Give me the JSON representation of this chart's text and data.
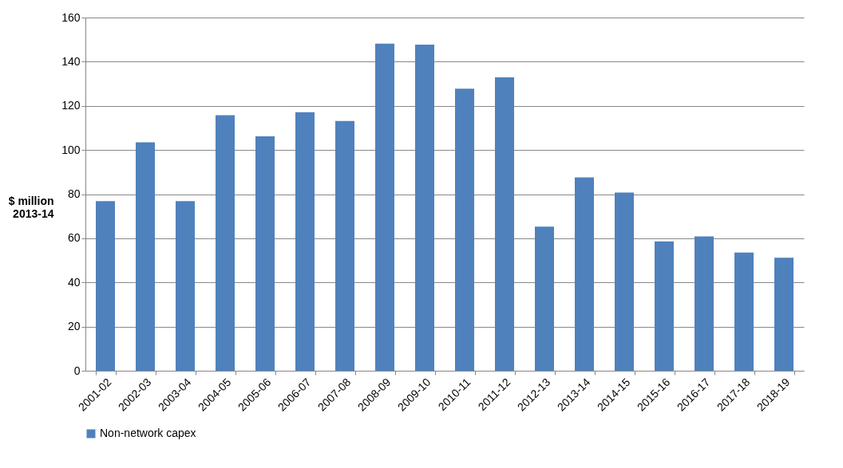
{
  "chart_data": {
    "type": "bar",
    "ylabel": "$ million\n2013-14",
    "categories": [
      "2001-02",
      "2002-03",
      "2003-04",
      "2004-05",
      "2005-06",
      "2006-07",
      "2007-08",
      "2008-09",
      "2009-10",
      "2010-11",
      "2011-12",
      "2012-13",
      "2013-14",
      "2014-15",
      "2015-16",
      "2016-17",
      "2017-18",
      "2018-19"
    ],
    "series": [
      {
        "name": "Non-network capex",
        "color": "#4f81bd",
        "values": [
          76.8,
          103.5,
          76.8,
          115.8,
          106.2,
          117.1,
          113.1,
          148.2,
          147.7,
          127.8,
          132.9,
          65.3,
          87.6,
          80.7,
          58.6,
          60.9,
          53.5,
          51.2
        ]
      }
    ],
    "ylim": [
      0,
      160
    ],
    "yticks": [
      0,
      20,
      40,
      60,
      80,
      100,
      120,
      140,
      160
    ],
    "grid": "y",
    "legend": "bottom"
  }
}
